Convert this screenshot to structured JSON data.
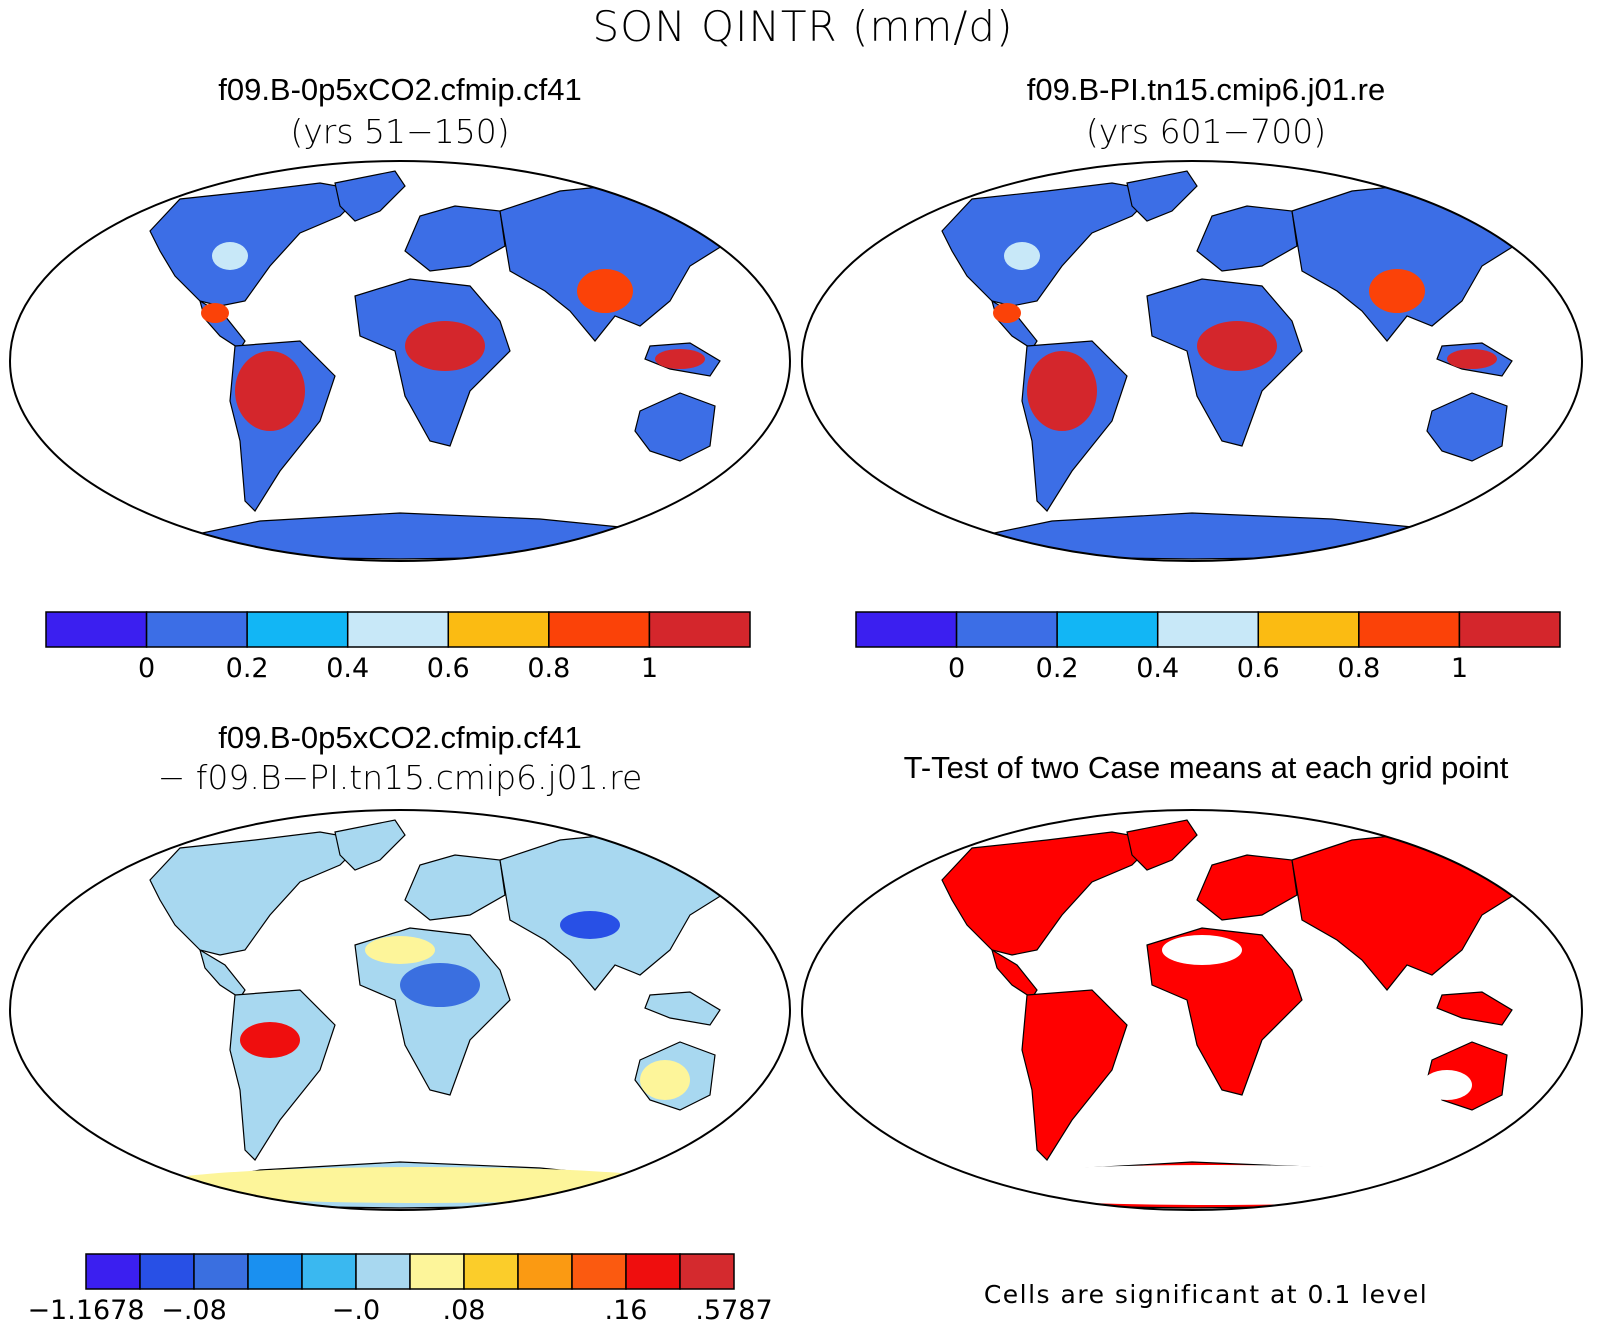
{
  "title": "SON QINTR (mm/d)",
  "panels": [
    {
      "id": "case1",
      "title": "f09.B-0p5xCO2.cfmip.cf41",
      "subtitle": "(yrs 51−150)",
      "colorbar": {
        "colors": [
          "#3b1ff0",
          "#3c6ee6",
          "#12b6f5",
          "#c8e8f8",
          "#fbbb12",
          "#fb4208",
          "#d4262c"
        ],
        "labels": [
          "0",
          "0.2",
          "0.4",
          "0.6",
          "0.8",
          "1"
        ]
      }
    },
    {
      "id": "case2",
      "title": "f09.B-PI.tn15.cmip6.j01.re",
      "subtitle": "(yrs 601−700)",
      "colorbar": {
        "colors": [
          "#3b1ff0",
          "#3c6ee6",
          "#12b6f5",
          "#c8e8f8",
          "#fbbb12",
          "#fb4208",
          "#d4262c"
        ],
        "labels": [
          "0",
          "0.2",
          "0.4",
          "0.6",
          "0.8",
          "1"
        ]
      }
    },
    {
      "id": "diff",
      "title": "f09.B-0p5xCO2.cfmip.cf41",
      "subtitle": "− f09.B−PI.tn15.cmip6.j01.re",
      "colorbar": {
        "colors": [
          "#3b1ff0",
          "#2850e6",
          "#3a6fe0",
          "#1a90f0",
          "#3ab8f0",
          "#a8d8f0",
          "#fdf59a",
          "#fbcd2a",
          "#fb9a12",
          "#fb5a10",
          "#ef0e0e",
          "#d42a2e"
        ],
        "labels": [
          "−1.1678",
          "−.08",
          "−.0",
          ".08",
          ".16",
          ".5787"
        ]
      }
    },
    {
      "id": "ttest",
      "title": "T-Test of two Case means at each grid point",
      "note": "Cells are significant at 0.1 level",
      "significant_color": "#ff0000"
    }
  ]
}
